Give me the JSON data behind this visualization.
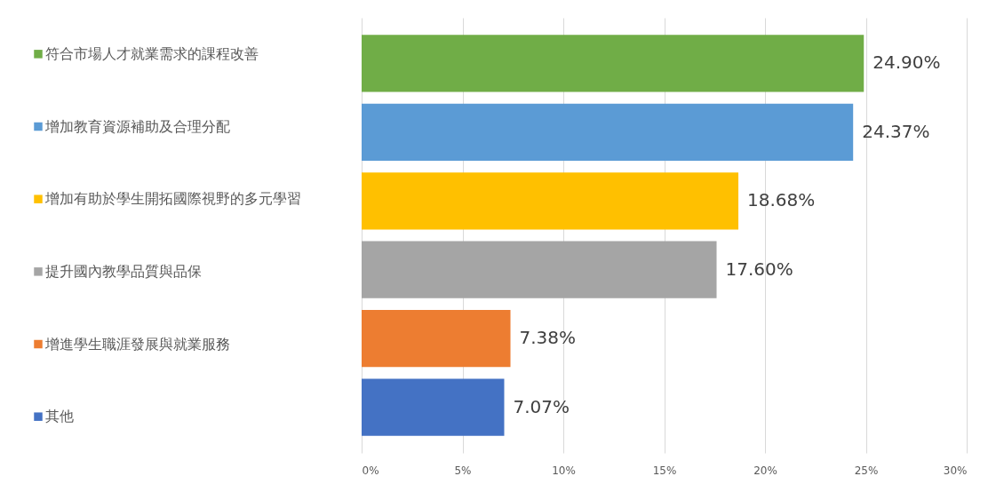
{
  "chart_data": {
    "type": "bar",
    "orientation": "horizontal",
    "categories": [
      "符合市場人才就業需求的課程改善",
      "增加教育資源補助及合理分配",
      "增加有助於學生開拓國際視野的多元學習",
      "提升國內教學品質與品保",
      "增進學生職涯發展與就業服務",
      "其他"
    ],
    "values": [
      24.9,
      24.37,
      18.68,
      17.6,
      7.38,
      7.07
    ],
    "value_labels": [
      "24.90%",
      "24.37%",
      "18.68%",
      "17.60%",
      "7.38%",
      "7.07%"
    ],
    "colors": [
      "#70ad47",
      "#5b9bd5",
      "#ffc000",
      "#a5a5a5",
      "#ed7d31",
      "#4472c4"
    ],
    "xlim": [
      0,
      30
    ],
    "xticks": [
      {
        "value": 0,
        "label": "0%"
      },
      {
        "value": 5,
        "label": "5%"
      },
      {
        "value": 10,
        "label": "10%"
      },
      {
        "value": 15,
        "label": "15%"
      },
      {
        "value": 20,
        "label": "20%"
      },
      {
        "value": 25,
        "label": "25%"
      },
      {
        "value": 30,
        "label": "30%"
      }
    ],
    "grid": "x"
  }
}
